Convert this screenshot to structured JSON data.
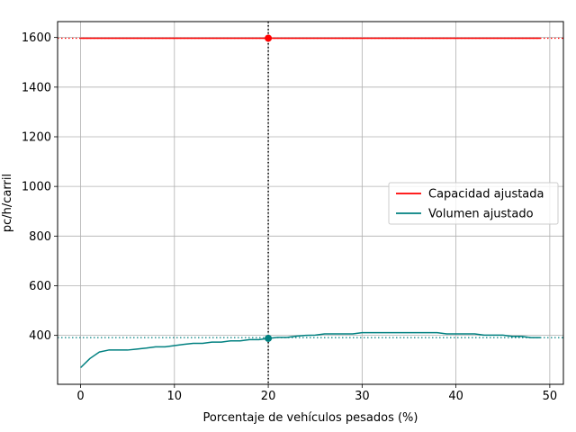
{
  "chart_data": {
    "type": "line",
    "title": "",
    "xlabel": "Porcentaje de vehículos pesados (%)",
    "ylabel": "pc/h/carril",
    "xlim": [
      -2.45,
      51.45
    ],
    "ylim": [
      203,
      1664
    ],
    "xticks": [
      0,
      10,
      20,
      30,
      40,
      50
    ],
    "yticks": [
      400,
      600,
      800,
      1000,
      1200,
      1400,
      1600
    ],
    "grid": true,
    "legend_position": "center-right",
    "series": [
      {
        "name": "Capacidad ajustada",
        "color": "#ff0000",
        "x": [
          0,
          49
        ],
        "y": [
          1597,
          1597
        ]
      },
      {
        "name": "Volumen ajustado",
        "color": "#008080",
        "x": [
          0,
          1,
          2,
          3,
          4,
          5,
          6,
          7,
          8,
          9,
          10,
          11,
          12,
          13,
          14,
          15,
          16,
          17,
          18,
          19,
          20,
          21,
          22,
          23,
          24,
          25,
          26,
          27,
          28,
          29,
          30,
          31,
          32,
          33,
          34,
          35,
          36,
          37,
          38,
          39,
          40,
          41,
          42,
          43,
          44,
          45,
          46,
          47,
          48,
          49
        ],
        "y": [
          270,
          307,
          333,
          341,
          341,
          341,
          345,
          349,
          354,
          354,
          359,
          364,
          368,
          368,
          373,
          373,
          378,
          378,
          383,
          383,
          388,
          392,
          392,
          397,
          400,
          401,
          406,
          406,
          406,
          406,
          411,
          411,
          411,
          411,
          411,
          411,
          411,
          411,
          411,
          406,
          406,
          406,
          406,
          401,
          401,
          401,
          396,
          396,
          391,
          391
        ]
      }
    ],
    "reference_lines": {
      "vertical_x": 20,
      "capacity_hline_y": 1597,
      "volume_hline_y": 391,
      "capacity_hline_color": "#ff0000",
      "volume_hline_color": "#008080",
      "vertical_color": "#000000"
    },
    "highlight_points": [
      {
        "x": 20,
        "y": 1597,
        "color": "#ff0000"
      },
      {
        "x": 20,
        "y": 388,
        "color": "#008080"
      }
    ]
  }
}
